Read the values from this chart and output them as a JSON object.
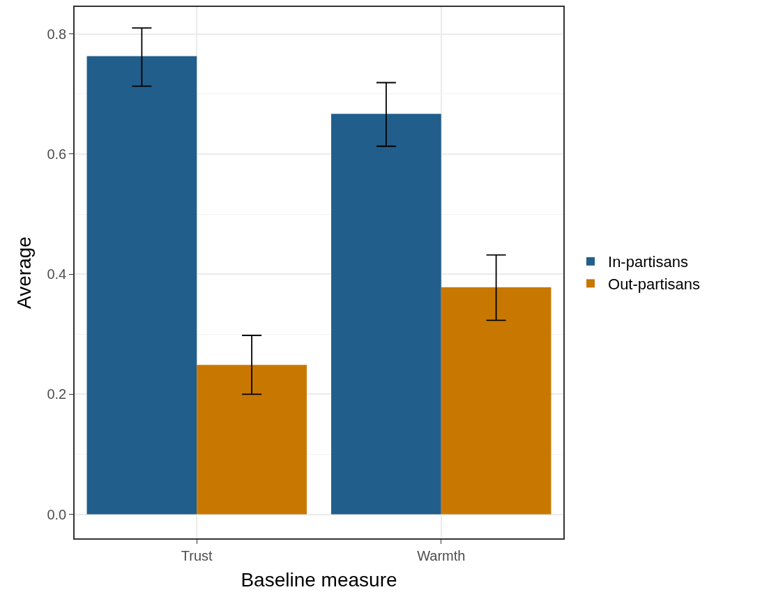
{
  "chart_data": {
    "type": "bar",
    "xlabel": "Baseline measure",
    "ylabel": "Average",
    "categories": [
      "Trust",
      "Warmth"
    ],
    "series": [
      {
        "name": "In-partisans",
        "color": "#225e8b",
        "values": [
          0.763,
          0.667
        ],
        "errors": [
          [
            0.713,
            0.81
          ],
          [
            0.613,
            0.719
          ]
        ]
      },
      {
        "name": "Out-partisans",
        "color": "#c87800",
        "values": [
          0.249,
          0.378
        ],
        "errors": [
          [
            0.2,
            0.298
          ],
          [
            0.323,
            0.432
          ]
        ]
      }
    ],
    "ylim": [
      -0.04,
      0.845
    ],
    "yticks": [
      {
        "value": 0,
        "label": "0.0"
      },
      {
        "value": 0.2,
        "label": "0.2"
      },
      {
        "value": 0.4,
        "label": "0.4"
      },
      {
        "value": 0.6,
        "label": "0.6"
      },
      {
        "value": 0.8,
        "label": "0.8"
      }
    ],
    "grid": true,
    "legend": "right"
  }
}
